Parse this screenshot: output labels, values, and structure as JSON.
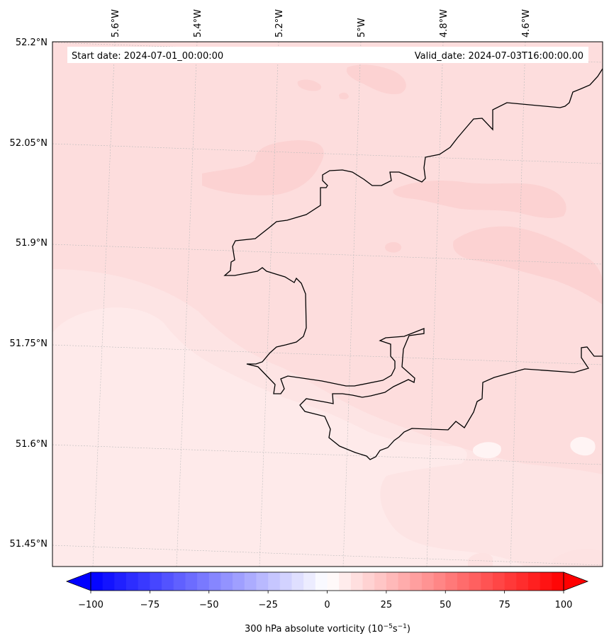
{
  "header": {
    "start_date": "Start date: 2024-07-01_00:00:00",
    "valid_date": "Valid_date: 2024-07-03T16:00:00.00"
  },
  "lon_labels": [
    "5.6°W",
    "5.4°W",
    "5.2°W",
    "5°W",
    "4.8°W",
    "4.6°W"
  ],
  "lat_labels": [
    "52.2°N",
    "52.05°N",
    "51.9°N",
    "51.75°N",
    "51.6°N",
    "51.45°N"
  ],
  "colorbar": {
    "ticks": [
      "−100",
      "−75",
      "−50",
      "−25",
      "0",
      "25",
      "50",
      "75",
      "100"
    ],
    "label_main": "300 hPa absolute vorticity (10",
    "label_exp1": "−5",
    "label_mid": "s",
    "label_exp2": "−1",
    "label_end": ")",
    "min": -100,
    "max": 100,
    "levels": 40,
    "colormap": "bwr",
    "extend": "both"
  },
  "map": {
    "lon_range": [
      -5.78,
      -4.43
    ],
    "lat_range": [
      51.42,
      52.2
    ],
    "field_colors": {
      "background": "#fddddd",
      "southwest_low": "#feeaea",
      "coastal_band": "#fde2e2",
      "northern_patches": "#fcd2d2",
      "white_patch": "#fff4f4",
      "sea_edge": "#fde4e4"
    },
    "coastline_color": "#000000",
    "gridline_color": "#bbbbbb"
  }
}
